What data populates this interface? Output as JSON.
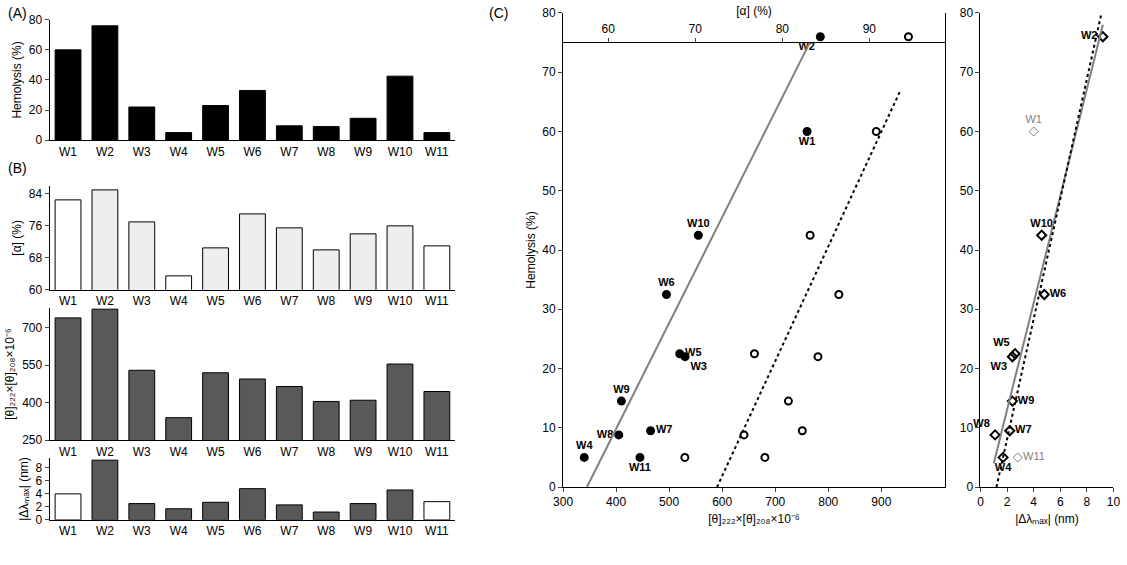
{
  "chart_data": [
    {
      "type": "bar",
      "title": "(A)",
      "ylabel": "Hemolysis (%)",
      "categories": [
        "W1",
        "W2",
        "W3",
        "W4",
        "W5",
        "W6",
        "W7",
        "W8",
        "W9",
        "W10",
        "W11"
      ],
      "values": [
        60,
        76,
        22,
        5,
        23,
        33,
        9.5,
        9,
        14.5,
        42.5,
        5
      ],
      "color": "#000000",
      "ylim": [
        0,
        80
      ],
      "yticks": [
        0,
        20,
        40,
        60,
        80
      ]
    },
    {
      "type": "bar",
      "title": "(B)",
      "ylabel": "[α] (%)",
      "categories": [
        "W1",
        "W2",
        "W3",
        "W4",
        "W5",
        "W6",
        "W7",
        "W8",
        "W9",
        "W10",
        "W11"
      ],
      "values": [
        82.5,
        85,
        77,
        63.5,
        70.5,
        79,
        75.5,
        70,
        74,
        76,
        71
      ],
      "colors": [
        "#ffffff",
        "#eeeeee",
        "#eeeeee",
        "#ffffff",
        "#eeeeee",
        "#eeeeee",
        "#eeeeee",
        "#eeeeee",
        "#eeeeee",
        "#eeeeee",
        "#ffffff"
      ],
      "ylim": [
        60,
        86
      ],
      "yticks": [
        60,
        68,
        76,
        84
      ]
    },
    {
      "type": "bar",
      "ylabel": "[θ]₂₂₂×[θ]₂₀₈×10⁻⁶",
      "categories": [
        "W1",
        "W2",
        "W3",
        "W4",
        "W5",
        "W6",
        "W7",
        "W8",
        "W9",
        "W10",
        "W11"
      ],
      "values": [
        740,
        775,
        530,
        340,
        520,
        495,
        465,
        405,
        410,
        555,
        445
      ],
      "color": "#595959",
      "ylim": [
        250,
        780
      ],
      "yticks": [
        250,
        400,
        550,
        700
      ]
    },
    {
      "type": "bar",
      "ylabel": "|Δλₘₐₓ| (nm)",
      "categories": [
        "W1",
        "W2",
        "W3",
        "W4",
        "W5",
        "W6",
        "W7",
        "W8",
        "W9",
        "W10",
        "W11"
      ],
      "values": [
        4,
        9.2,
        2.5,
        1.7,
        2.7,
        4.8,
        2.3,
        1.2,
        2.5,
        4.6,
        2.8
      ],
      "colors": [
        "#ffffff",
        "#595959",
        "#595959",
        "#595959",
        "#595959",
        "#595959",
        "#595959",
        "#595959",
        "#595959",
        "#595959",
        "#ffffff"
      ],
      "ylim": [
        0,
        9.5
      ],
      "yticks": [
        0,
        2,
        4,
        6,
        8
      ]
    },
    {
      "type": "scatter",
      "title": "(C)",
      "ylabel": "Hemolysis (%)",
      "xlabel": "[θ]₂₂₂×[θ]₂₀₈×10⁻⁶",
      "x2label": "[α] (%)",
      "xlim": [
        300,
        1020
      ],
      "xticks": [
        300,
        400,
        500,
        600,
        700,
        800,
        900
      ],
      "x2lim": [
        54.8,
        98.7
      ],
      "x2ticks": [
        60,
        70,
        80,
        90
      ],
      "ylim": [
        0,
        80
      ],
      "yticks": [
        0,
        10,
        20,
        30,
        40,
        50,
        60,
        70,
        80
      ],
      "series": [
        {
          "labels": [
            "W1",
            "W2",
            "W3",
            "W4",
            "W5",
            "W6",
            "W7",
            "W8",
            "W9",
            "W10",
            "W11"
          ],
          "x": [
            760,
            785,
            530,
            340,
            520,
            495,
            465,
            405,
            410,
            555,
            445
          ],
          "values": [
            60,
            76,
            22,
            5,
            22.5,
            32.5,
            9.5,
            8.8,
            14.5,
            42.5,
            5
          ],
          "color": "#000000",
          "marker": "filled circle"
        },
        {
          "axis": "x2",
          "x": [
            90.8,
            94.5,
            84.1,
            78.0,
            76.8,
            86.5,
            82.3,
            75.6,
            80.7,
            83.2,
            68.8
          ],
          "values": [
            60,
            76,
            22,
            5,
            22.5,
            32.5,
            9.5,
            8.8,
            14.5,
            42.5,
            5
          ],
          "color": "#000000",
          "marker": "open circle"
        },
        {
          "type": "line",
          "x": [
            345,
            765
          ],
          "values": [
            0,
            75
          ],
          "color": "#808080",
          "line_style": "solid"
        },
        {
          "type": "line",
          "axis": "x2",
          "x": [
            72.5,
            93.6
          ],
          "values": [
            0,
            67
          ],
          "color": "#000000",
          "line_style": "dotted"
        }
      ]
    },
    {
      "type": "scatter",
      "xlabel": "|Δλₘₐₓ| (nm)",
      "xlim": [
        0,
        10
      ],
      "xticks": [
        0,
        2,
        4,
        6,
        8,
        10
      ],
      "ylim": [
        0,
        80
      ],
      "yticks": [
        0,
        10,
        20,
        30,
        40,
        50,
        60,
        70,
        80
      ],
      "series": [
        {
          "labels": [
            "W2",
            "W3",
            "W4",
            "W5",
            "W6",
            "W7",
            "W8",
            "W9",
            "W10"
          ],
          "x": [
            9.2,
            2.4,
            1.7,
            2.6,
            4.8,
            2.2,
            1.1,
            2.4,
            4.6
          ],
          "values": [
            76,
            22,
            5,
            22.5,
            32.5,
            9.5,
            8.8,
            14.5,
            42.5
          ],
          "color": "#000000",
          "marker": "open diamond"
        },
        {
          "labels": [
            "W1",
            "W11"
          ],
          "x": [
            4,
            2.8
          ],
          "values": [
            60,
            5
          ],
          "color": "#808080",
          "marker": "open diamond"
        },
        {
          "type": "line",
          "x": [
            1.0,
            9.2
          ],
          "values": [
            4,
            78
          ],
          "color": "#808080",
          "line_style": "solid"
        },
        {
          "type": "line",
          "x": [
            1.2,
            9.1
          ],
          "values": [
            0,
            80
          ],
          "color": "#000000",
          "line_style": "dotted"
        }
      ]
    }
  ]
}
